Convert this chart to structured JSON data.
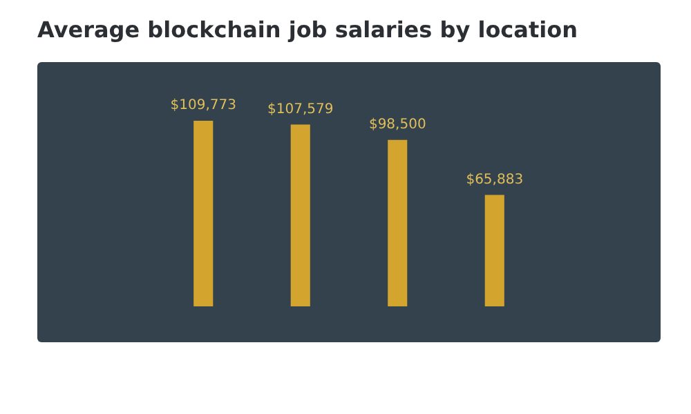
{
  "chart_data": {
    "type": "bar",
    "title": "Average blockchain job salaries by location",
    "categories": [
      null,
      null,
      null,
      null
    ],
    "values": [
      109773,
      107579,
      98500,
      65883
    ],
    "value_labels": [
      "$109,773",
      "$107,579",
      "$98,500",
      "$65,883"
    ],
    "color": "#d4a52e",
    "legend": false,
    "grid": false
  }
}
